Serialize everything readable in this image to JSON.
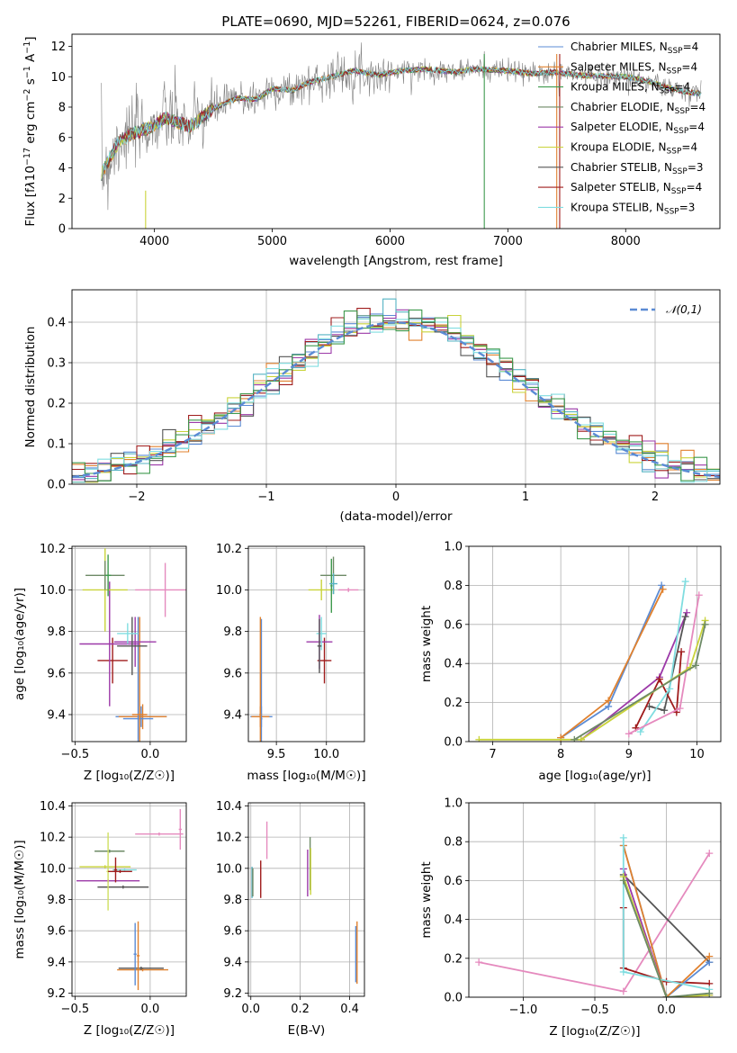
{
  "colors": {
    "series": [
      "#5b8bd4",
      "#e0812e",
      "#3f9a4e",
      "#9c39a8",
      "#e58abe",
      "#c9d33a",
      "#55b3c3",
      "#d7c52f",
      "#555555",
      "#9f1c1c",
      "#80dde0",
      "#6d8a66",
      "#e3853a",
      "#d0e060"
    ],
    "obs": "#808080",
    "gauss": "#5b8bd4"
  },
  "chart_data": [
    {
      "id": "spectrum",
      "type": "line",
      "title": "PLATE=0690, MJD=52261, FIBERID=0624, z=0.076",
      "xlabel": "wavelength [Angstrom, rest frame]",
      "ylabel_parts": [
        "Flux [f",
        "λ",
        "10",
        "−17",
        " erg cm",
        "−2",
        " s",
        "−1",
        " A",
        "−1",
        "]"
      ],
      "xlim": [
        3300,
        8800
      ],
      "ylim": [
        0,
        12.8
      ],
      "xticks": [
        4000,
        5000,
        6000,
        7000,
        8000
      ],
      "yticks": [
        0,
        2,
        4,
        6,
        8,
        10,
        12
      ],
      "anchors_x": [
        3550,
        3600,
        3700,
        3800,
        3900,
        3960,
        4100,
        4300,
        4500,
        4700,
        4861,
        5000,
        5175,
        5300,
        5500,
        5700,
        5900,
        6100,
        6300,
        6563,
        6700,
        7000,
        7200,
        7400,
        7600,
        8000,
        8200,
        8300,
        8400,
        8500,
        8600
      ],
      "anchors_y": [
        3.6,
        4.3,
        5.8,
        6.2,
        6.5,
        6.6,
        7.3,
        6.7,
        7.9,
        8.6,
        8.5,
        9.2,
        9.1,
        9.6,
        10.0,
        10.4,
        10.1,
        10.4,
        10.5,
        10.3,
        10.5,
        10.4,
        10.2,
        10.3,
        10.1,
        10.0,
        9.7,
        9.4,
        9.2,
        9.0,
        8.9
      ],
      "legend": [
        {
          "pre": "Chabrier MILES, N",
          "sub": "SSP",
          "post": "=4"
        },
        {
          "pre": "Salpeter MILES, N",
          "sub": "SSP",
          "post": "=4"
        },
        {
          "pre": "Kroupa MILES, N",
          "sub": "SSP",
          "post": "=4"
        },
        {
          "pre": "Chabrier ELODIE, N",
          "sub": "SSP",
          "post": "=4"
        },
        {
          "pre": "Salpeter ELODIE, N",
          "sub": "SSP",
          "post": "=4"
        },
        {
          "pre": "Kroupa ELODIE, N",
          "sub": "SSP",
          "post": "=4"
        },
        {
          "pre": "Chabrier STELIB, N",
          "sub": "SSP",
          "post": "=3"
        },
        {
          "pre": "Salpeter STELIB, N",
          "sub": "SSP",
          "post": "=4"
        },
        {
          "pre": "Kroupa STELIB, N",
          "sub": "SSP",
          "post": "=3"
        }
      ],
      "legend_placement": "upper-right"
    },
    {
      "id": "residuals",
      "type": "histogram",
      "xlabel": "(data-model)/error",
      "ylabel": "Normed distribution",
      "xlim": [
        -2.5,
        2.5
      ],
      "ylim": [
        0,
        0.48
      ],
      "xticks": [
        -2,
        -1,
        0,
        1,
        2
      ],
      "yticks": [
        0.0,
        0.1,
        0.2,
        0.3,
        0.4
      ],
      "bin_width": 0.1,
      "legend": "𝒩(0,1)",
      "legend_placement": "upper-right",
      "grid": true
    },
    {
      "id": "age_vs_Z",
      "type": "errorbar",
      "xlabel": "Z [log₁₀(Z/Z☉)]",
      "ylabel": "age  [log₁₀(age/yr)]",
      "xlim": [
        -0.52,
        0.24
      ],
      "ylim": [
        9.27,
        10.21
      ],
      "xticks": [
        -0.5,
        0.0
      ],
      "yticks": [
        9.4,
        9.6,
        9.8,
        10.0,
        10.2
      ],
      "points": [
        {
          "x": -0.06,
          "y": 9.39,
          "ex": 0.17,
          "ey": 0.05,
          "c": 0
        },
        {
          "x": -0.05,
          "y": 9.39,
          "ex": 0.16,
          "ey": 0.06,
          "c": 1
        },
        {
          "x": -0.08,
          "y": 9.38,
          "ex": 0.1,
          "ey": 0.49,
          "c": 0
        },
        {
          "x": -0.07,
          "y": 9.4,
          "ex": 0.05,
          "ey": 0.47,
          "c": 1
        },
        {
          "x": -0.25,
          "y": 9.66,
          "ex": 0.1,
          "ey": 0.11,
          "c": 9
        },
        {
          "x": -0.27,
          "y": 9.74,
          "ex": 0.2,
          "ey": 0.3,
          "c": 3
        },
        {
          "x": -0.1,
          "y": 9.75,
          "ex": 0.14,
          "ey": 0.12,
          "c": 3
        },
        {
          "x": -0.12,
          "y": 9.73,
          "ex": 0.1,
          "ey": 0.14,
          "c": 8
        },
        {
          "x": -0.15,
          "y": 9.79,
          "ex": 0.07,
          "ey": 0.05,
          "c": 10
        },
        {
          "x": -0.3,
          "y": 10.0,
          "ex": 0.15,
          "ey": 0.2,
          "c": 5
        },
        {
          "x": -0.3,
          "y": 10.07,
          "ex": 0.13,
          "ey": 0.07,
          "c": 11
        },
        {
          "x": -0.28,
          "y": 10.07,
          "ex": 0.02,
          "ey": 0.1,
          "c": 2
        },
        {
          "x": 0.1,
          "y": 10.0,
          "ex": 0.2,
          "ey": 0.13,
          "c": 4
        }
      ],
      "grid": true
    },
    {
      "id": "age_vs_mass",
      "type": "errorbar",
      "xlabel": "mass [log₁₀(M/M☉)]",
      "xlim": [
        9.22,
        10.38
      ],
      "ylim": [
        9.27,
        10.21
      ],
      "xticks": [
        9.5,
        10.0
      ],
      "yticks": [
        9.4,
        9.6,
        9.8,
        10.0,
        10.2
      ],
      "points": [
        {
          "x": 9.35,
          "y": 9.39,
          "ex": 0.11,
          "ey": 0.05,
          "c": 0
        },
        {
          "x": 9.34,
          "y": 9.39,
          "ex": 0.09,
          "ey": 0.05,
          "c": 1
        },
        {
          "x": 9.35,
          "y": 9.38,
          "ex": 0.01,
          "ey": 0.48,
          "c": 0
        },
        {
          "x": 9.34,
          "y": 9.4,
          "ex": 0.01,
          "ey": 0.47,
          "c": 1
        },
        {
          "x": 9.98,
          "y": 9.66,
          "ex": 0.07,
          "ey": 0.11,
          "c": 9
        },
        {
          "x": 9.93,
          "y": 9.75,
          "ex": 0.13,
          "ey": 0.13,
          "c": 3
        },
        {
          "x": 9.95,
          "y": 9.79,
          "ex": 0.05,
          "ey": 0.08,
          "c": 10
        },
        {
          "x": 9.93,
          "y": 9.73,
          "ex": 0.02,
          "ey": 0.13,
          "c": 8
        },
        {
          "x": 9.95,
          "y": 10.0,
          "ex": 0.13,
          "ey": 0.05,
          "c": 5
        },
        {
          "x": 10.07,
          "y": 10.07,
          "ex": 0.13,
          "ey": 0.09,
          "c": 11
        },
        {
          "x": 10.05,
          "y": 10.02,
          "ex": 0.01,
          "ey": 0.13,
          "c": 2
        },
        {
          "x": 10.22,
          "y": 10.0,
          "ex": 0.1,
          "ey": 0.01,
          "c": 4
        },
        {
          "x": 10.07,
          "y": 10.03,
          "ex": 0.04,
          "ey": 0.05,
          "c": 6
        }
      ],
      "grid": true
    },
    {
      "id": "weight_vs_age",
      "type": "line",
      "xlabel": "age  [log₁₀(age/yr)]",
      "ylabel": "mass weight",
      "xlim": [
        6.65,
        10.35
      ],
      "ylim": [
        0,
        1.0
      ],
      "xticks": [
        7,
        8,
        9,
        10
      ],
      "yticks": [
        0.0,
        0.2,
        0.4,
        0.6,
        0.8,
        1.0
      ],
      "series": [
        {
          "c": 0,
          "x": [
            8.0,
            8.7,
            9.48
          ],
          "y": [
            0.02,
            0.18,
            0.8
          ]
        },
        {
          "c": 1,
          "x": [
            8.0,
            8.7,
            9.5
          ],
          "y": [
            0.02,
            0.21,
            0.78
          ]
        },
        {
          "c": 3,
          "x": [
            8.3,
            9.45,
            9.85
          ],
          "y": [
            0.01,
            0.33,
            0.66
          ]
        },
        {
          "c": 8,
          "x": [
            9.3,
            9.52,
            9.83
          ],
          "y": [
            0.18,
            0.16,
            0.64
          ]
        },
        {
          "c": 9,
          "x": [
            9.1,
            9.45,
            9.7,
            9.77
          ],
          "y": [
            0.07,
            0.32,
            0.15,
            0.46
          ]
        },
        {
          "c": 10,
          "x": [
            9.17,
            9.6,
            9.83
          ],
          "y": [
            0.05,
            0.27,
            0.82
          ]
        },
        {
          "c": 4,
          "x": [
            9.0,
            9.75,
            10.03
          ],
          "y": [
            0.04,
            0.17,
            0.75
          ]
        },
        {
          "c": 5,
          "x": [
            6.8,
            8.3,
            9.9,
            10.12
          ],
          "y": [
            0.01,
            0.01,
            0.38,
            0.62
          ]
        },
        {
          "c": 11,
          "x": [
            8.2,
            9.98,
            10.12
          ],
          "y": [
            0.01,
            0.39,
            0.6
          ]
        }
      ],
      "grid": true
    },
    {
      "id": "mass_vs_Z",
      "type": "errorbar",
      "xlabel": "Z [log₁₀(Z/Z☉)]",
      "ylabel": "mass [log₁₀(M/M☉)]",
      "xlim": [
        -0.52,
        0.24
      ],
      "ylim": [
        9.18,
        10.42
      ],
      "xticks": [
        -0.5,
        0.0
      ],
      "yticks": [
        9.2,
        9.4,
        9.6,
        9.8,
        10.0,
        10.2,
        10.4
      ],
      "points": [
        {
          "x": -0.05,
          "y": 9.35,
          "ex": 0.17,
          "ey": 0.01,
          "c": 1
        },
        {
          "x": -0.06,
          "y": 9.36,
          "ex": 0.15,
          "ey": 0.01,
          "c": 8
        },
        {
          "x": -0.1,
          "y": 9.45,
          "ex": 0.01,
          "ey": 0.2,
          "c": 0
        },
        {
          "x": -0.08,
          "y": 9.44,
          "ex": 0.01,
          "ey": 0.22,
          "c": 1
        },
        {
          "x": -0.28,
          "y": 9.92,
          "ex": 0.21,
          "ey": 0.01,
          "c": 3
        },
        {
          "x": -0.18,
          "y": 9.88,
          "ex": 0.17,
          "ey": 0.01,
          "c": 8
        },
        {
          "x": -0.17,
          "y": 9.99,
          "ex": 0.08,
          "ey": 0.01,
          "c": 10
        },
        {
          "x": -0.3,
          "y": 10.01,
          "ex": 0.17,
          "ey": 0.01,
          "c": 5
        },
        {
          "x": -0.27,
          "y": 10.11,
          "ex": 0.1,
          "ey": 0.01,
          "c": 11
        },
        {
          "x": -0.28,
          "y": 9.98,
          "ex": 0.01,
          "ey": 0.25,
          "c": 13
        },
        {
          "x": -0.23,
          "y": 9.99,
          "ex": 0.01,
          "ey": 0.08,
          "c": 9
        },
        {
          "x": -0.2,
          "y": 9.98,
          "ex": 0.08,
          "ey": 0.01,
          "c": 9
        },
        {
          "x": 0.06,
          "y": 10.22,
          "ex": 0.16,
          "ey": 0.01,
          "c": 4
        },
        {
          "x": 0.2,
          "y": 10.25,
          "ex": 0.01,
          "ey": 0.13,
          "c": 4
        }
      ],
      "grid": true
    },
    {
      "id": "mass_vs_EBV",
      "type": "errorbar",
      "xlabel": "E(B-V)",
      "xlim": [
        -0.01,
        0.46
      ],
      "ylim": [
        9.18,
        10.42
      ],
      "xticks": [
        0.0,
        0.2,
        0.4
      ],
      "yticks": [
        9.2,
        9.4,
        9.6,
        9.8,
        10.0,
        10.2,
        10.4
      ],
      "points": [
        {
          "x": 0.005,
          "y": 9.91,
          "ex": 0.0,
          "ey": 0.1,
          "c": 6
        },
        {
          "x": 0.008,
          "y": 9.91,
          "ex": 0.0,
          "ey": 0.09,
          "c": 11
        },
        {
          "x": 0.04,
          "y": 9.93,
          "ex": 0.0,
          "ey": 0.12,
          "c": 9
        },
        {
          "x": 0.065,
          "y": 10.18,
          "ex": 0.0,
          "ey": 0.12,
          "c": 4
        },
        {
          "x": 0.23,
          "y": 9.97,
          "ex": 0.0,
          "ey": 0.15,
          "c": 3
        },
        {
          "x": 0.24,
          "y": 10.03,
          "ex": 0.0,
          "ey": 0.17,
          "c": 11
        },
        {
          "x": 0.242,
          "y": 9.98,
          "ex": 0.0,
          "ey": 0.15,
          "c": 5
        },
        {
          "x": 0.425,
          "y": 9.45,
          "ex": 0.0,
          "ey": 0.18,
          "c": 0
        },
        {
          "x": 0.43,
          "y": 9.46,
          "ex": 0.0,
          "ey": 0.2,
          "c": 1
        }
      ],
      "grid": true
    },
    {
      "id": "weight_vs_Z",
      "type": "line",
      "xlabel": "Z [log₁₀(Z/Z☉)]",
      "ylabel": "mass weight",
      "xlim": [
        -1.38,
        0.38
      ],
      "ylim": [
        0,
        1.0
      ],
      "xticks": [
        -1.0,
        -0.5,
        0.0
      ],
      "yticks": [
        0.0,
        0.2,
        0.4,
        0.6,
        0.8,
        1.0
      ],
      "series": [
        {
          "c": 4,
          "x": [
            -1.31,
            -0.3,
            0.3
          ],
          "y": [
            0.18,
            0.03,
            0.74
          ]
        },
        {
          "c": 8,
          "x": [
            -0.3,
            0.3
          ],
          "y": [
            0.63,
            0.18
          ]
        },
        {
          "c": 9,
          "x": [
            -0.3,
            -0.3,
            0.0,
            0.3
          ],
          "y": [
            0.46,
            0.15,
            0.08,
            0.07
          ]
        },
        {
          "c": 0,
          "x": [
            -0.3,
            0.0,
            0.3
          ],
          "y": [
            0.78,
            0.0,
            0.18
          ]
        },
        {
          "c": 1,
          "x": [
            -0.3,
            0.0,
            0.3
          ],
          "y": [
            0.78,
            0.0,
            0.21
          ]
        },
        {
          "c": 3,
          "x": [
            -0.3,
            0.0,
            0.3
          ],
          "y": [
            0.66,
            0.0,
            0.01
          ]
        },
        {
          "c": 10,
          "x": [
            -0.3,
            -0.3,
            0.3
          ],
          "y": [
            0.82,
            0.13,
            0.04
          ]
        },
        {
          "c": 5,
          "x": [
            -0.3,
            0.0,
            0.3
          ],
          "y": [
            0.62,
            0.0,
            0.01
          ]
        },
        {
          "c": 11,
          "x": [
            -0.3,
            0.0,
            0.3
          ],
          "y": [
            0.6,
            0.0,
            0.02
          ]
        }
      ],
      "grid": true
    }
  ]
}
